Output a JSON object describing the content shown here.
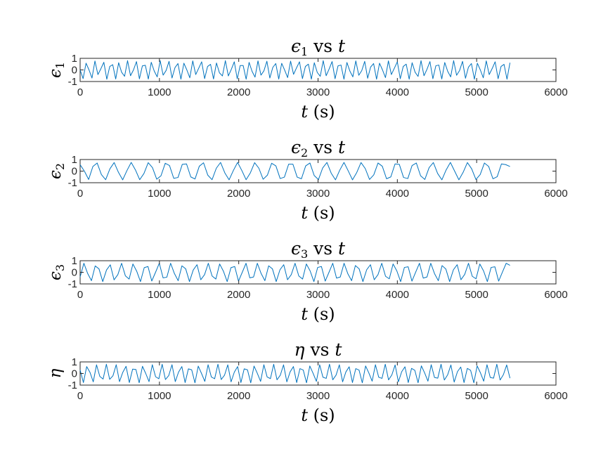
{
  "chart_data": [
    {
      "type": "line",
      "title": "ϵ1 vs t",
      "title_parts": [
        {
          "text": "ϵ",
          "italic": true
        },
        {
          "text": "1",
          "sub": true
        },
        {
          "text": " vs "
        },
        {
          "text": "t",
          "italic": true
        }
      ],
      "xlabel": "t (s)",
      "xlabel_parts": [
        {
          "text": "t",
          "italic": true
        },
        {
          "text": " (s)"
        }
      ],
      "ylabel": "ϵ1",
      "ylabel_parts": [
        {
          "text": "ϵ",
          "italic": true
        },
        {
          "text": "1",
          "sub": true
        }
      ],
      "xlim": [
        0,
        6000
      ],
      "ylim": [
        -1,
        1
      ],
      "xticks": [
        "0",
        "1000",
        "2000",
        "3000",
        "4000",
        "5000",
        "6000"
      ],
      "yticks": [
        "-1",
        "0",
        "1"
      ],
      "grid": false,
      "series": [
        {
          "color": "#0072BD",
          "x_range": [
            0,
            5420
          ],
          "amplitude": 0.8,
          "period": 38.7,
          "values": [
            0.0,
            -0.75,
            0.58,
            0.0,
            -0.7,
            0.77,
            -0.4,
            0.1,
            0.66,
            -0.8,
            0.3,
            0.45,
            -0.78,
            0.62,
            -0.2,
            -0.55,
            0.8,
            -0.5,
            0.0,
            0.72,
            -0.77,
            0.35,
            0.4,
            -0.79,
            0.66,
            -0.1,
            -0.6,
            0.8,
            -0.45,
            -0.05,
            0.74,
            -0.7,
            0.2,
            0.55,
            -0.8,
            0.58,
            0.0,
            -0.68,
            0.78,
            -0.4,
            0.15,
            0.7,
            -0.75,
            0.3,
            0.48,
            -0.78,
            0.6,
            -0.25,
            -0.52,
            0.8,
            -0.52,
            0.05,
            0.7,
            -0.77,
            0.38,
            0.38,
            -0.8,
            0.65,
            -0.12,
            -0.62,
            0.78,
            -0.45,
            -0.08,
            0.75,
            -0.7,
            0.22,
            0.55,
            -0.79,
            0.57,
            -0.02,
            -0.66,
            0.76,
            -0.38,
            0.18,
            0.7,
            -0.75,
            0.3,
            0.5,
            -0.8,
            0.62,
            -0.22,
            -0.55,
            0.8,
            -0.5,
            0.08,
            0.72,
            -0.76,
            0.35,
            0.42,
            -0.8,
            0.64,
            -0.1,
            -0.6,
            0.78,
            -0.46,
            -0.06,
            0.74,
            -0.72,
            0.25,
            0.55,
            -0.8,
            0.58,
            0.0,
            -0.66,
            0.78,
            -0.4,
            0.15,
            0.7,
            -0.76,
            0.3,
            0.5,
            -0.8,
            0.62,
            -0.2,
            -0.56,
            0.8,
            -0.5,
            0.05,
            0.72,
            -0.76,
            0.36,
            0.42,
            -0.78,
            0.64,
            -0.12,
            -0.6,
            0.8,
            -0.46,
            -0.05,
            0.74,
            -0.72,
            0.24,
            0.55,
            -0.8,
            0.58,
            0.0,
            -0.68,
            0.78,
            -0.4,
            0.12,
            0.7,
            -0.76,
            0.3,
            0.48,
            -0.8,
            0.62
          ]
        }
      ]
    },
    {
      "type": "line",
      "title": "ϵ2 vs t",
      "title_parts": [
        {
          "text": "ϵ",
          "italic": true
        },
        {
          "text": "2",
          "sub": true
        },
        {
          "text": " vs "
        },
        {
          "text": "t",
          "italic": true
        }
      ],
      "xlabel": "t (s)",
      "xlabel_parts": [
        {
          "text": "t",
          "italic": true
        },
        {
          "text": " (s)"
        }
      ],
      "ylabel": "ϵ2",
      "ylabel_parts": [
        {
          "text": "ϵ",
          "italic": true
        },
        {
          "text": "2",
          "sub": true
        }
      ],
      "xlim": [
        0,
        6000
      ],
      "ylim": [
        -1,
        1
      ],
      "xticks": [
        "0",
        "1000",
        "2000",
        "3000",
        "4000",
        "5000",
        "6000"
      ],
      "yticks": [
        "-1",
        "0",
        "1"
      ],
      "grid": false,
      "series": [
        {
          "color": "#0072BD",
          "x_range": [
            0,
            5420
          ],
          "amplitude": 0.75,
          "period": 55.4,
          "values": [
            0.55,
            0.0,
            -0.72,
            0.4,
            0.7,
            -0.3,
            -0.74,
            0.2,
            0.74,
            -0.1,
            -0.75,
            0.05,
            0.75,
            0.1,
            -0.74,
            -0.2,
            0.73,
            0.3,
            -0.7,
            -0.4,
            0.68,
            0.48,
            -0.62,
            -0.55,
            0.58,
            0.62,
            -0.5,
            -0.68,
            0.42,
            0.72,
            -0.35,
            -0.74,
            0.25,
            0.75,
            -0.15,
            -0.75,
            0.05,
            0.75,
            0.05,
            -0.74,
            -0.15,
            0.73,
            0.25,
            -0.7,
            -0.35,
            0.68,
            0.45,
            -0.64,
            -0.52,
            0.6,
            0.6,
            -0.52,
            -0.66,
            0.45,
            0.7,
            -0.38,
            -0.73,
            0.28,
            0.75,
            -0.18,
            -0.75,
            0.08,
            0.75,
            0.02,
            -0.75,
            -0.12,
            0.74,
            0.22,
            -0.72,
            -0.32,
            0.7,
            0.42,
            -0.66,
            -0.5,
            0.62,
            0.58,
            -0.55,
            -0.64,
            0.48,
            0.7,
            -0.4,
            -0.72,
            0.3,
            0.74,
            -0.2,
            -0.75,
            0.1,
            0.75,
            0.0,
            -0.75,
            -0.1,
            0.74,
            0.2,
            -0.72,
            -0.3,
            0.7,
            0.4,
            -0.66,
            -0.48,
            0.62,
            0.56,
            0.4
          ]
        }
      ]
    },
    {
      "type": "line",
      "title": "ϵ3 vs t",
      "title_parts": [
        {
          "text": "ϵ",
          "italic": true
        },
        {
          "text": "3",
          "sub": true
        },
        {
          "text": " vs "
        },
        {
          "text": "t",
          "italic": true
        }
      ],
      "xlabel": "t (s)",
      "xlabel_parts": [
        {
          "text": "t",
          "italic": true
        },
        {
          "text": " (s)"
        }
      ],
      "ylabel": "ϵ3",
      "ylabel_parts": [
        {
          "text": "ϵ",
          "italic": true
        },
        {
          "text": "3",
          "sub": true
        }
      ],
      "xlim": [
        0,
        6000
      ],
      "ylim": [
        -1,
        1
      ],
      "xticks": [
        "0",
        "1000",
        "2000",
        "3000",
        "4000",
        "5000",
        "6000"
      ],
      "yticks": [
        "-1",
        "0",
        "1"
      ],
      "grid": false,
      "series": [
        {
          "color": "#0072BD",
          "x_range": [
            0,
            5420
          ],
          "amplitude": 0.8,
          "period": 47.8,
          "values": [
            -0.4,
            0.78,
            -0.1,
            -0.72,
            0.55,
            0.3,
            -0.8,
            0.2,
            0.65,
            -0.65,
            -0.2,
            0.78,
            -0.3,
            -0.58,
            0.72,
            0.1,
            -0.8,
            0.4,
            0.5,
            -0.75,
            0.0,
            0.78,
            -0.48,
            -0.42,
            0.78,
            -0.1,
            -0.72,
            0.56,
            0.3,
            -0.8,
            0.2,
            0.66,
            -0.64,
            -0.2,
            0.78,
            -0.32,
            -0.58,
            0.72,
            0.1,
            -0.8,
            0.4,
            0.5,
            -0.76,
            0.0,
            0.78,
            -0.48,
            -0.4,
            0.78,
            -0.1,
            -0.72,
            0.56,
            0.3,
            -0.8,
            0.22,
            0.66,
            -0.64,
            -0.2,
            0.78,
            -0.32,
            -0.58,
            0.72,
            0.12,
            -0.8,
            0.42,
            0.5,
            -0.76,
            0.0,
            0.78,
            -0.5,
            -0.4,
            0.78,
            -0.12,
            -0.72,
            0.58,
            0.3,
            -0.8,
            0.22,
            0.66,
            -0.64,
            -0.2,
            0.78,
            -0.34,
            -0.56,
            0.72,
            0.12,
            -0.8,
            0.42,
            0.48,
            -0.76,
            0.02,
            0.78,
            -0.5,
            -0.4,
            0.78,
            -0.12,
            -0.72,
            0.58,
            0.28,
            -0.8,
            0.22,
            0.66,
            -0.64,
            -0.18,
            0.78,
            -0.34,
            -0.56,
            0.72,
            0.12,
            -0.8,
            0.42,
            0.48,
            -0.76,
            0.02,
            0.78,
            0.6
          ]
        }
      ]
    },
    {
      "type": "line",
      "title": "η vs t",
      "title_parts": [
        {
          "text": "η",
          "italic": true
        },
        {
          "text": " vs "
        },
        {
          "text": "t",
          "italic": true
        }
      ],
      "xlabel": "t (s)",
      "xlabel_parts": [
        {
          "text": "t",
          "italic": true
        },
        {
          "text": " (s)"
        }
      ],
      "ylabel": "η",
      "ylabel_parts": [
        {
          "text": "η",
          "italic": true
        }
      ],
      "xlim": [
        0,
        6000
      ],
      "ylim": [
        -1,
        1
      ],
      "xticks": [
        "0",
        "1000",
        "2000",
        "3000",
        "4000",
        "5000",
        "6000"
      ],
      "yticks": [
        "-1",
        "0",
        "1"
      ],
      "grid": false,
      "series": [
        {
          "color": "#0072BD",
          "x_range": [
            0,
            5420
          ],
          "amplitude": 0.8,
          "period": 43.1,
          "values": [
            0.3,
            -0.78,
            0.6,
            0.1,
            -0.72,
            0.75,
            -0.25,
            -0.48,
            0.8,
            -0.5,
            -0.2,
            0.76,
            -0.7,
            0.1,
            0.62,
            -0.78,
            0.38,
            0.35,
            -0.8,
            0.62,
            0.0,
            -0.7,
            0.76,
            -0.28,
            -0.45,
            0.8,
            -0.52,
            -0.18,
            0.76,
            -0.7,
            0.12,
            0.6,
            -0.78,
            0.4,
            0.32,
            -0.8,
            0.64,
            0.0,
            -0.68,
            0.76,
            -0.3,
            -0.45,
            0.8,
            -0.52,
            -0.15,
            0.75,
            -0.72,
            0.12,
            0.6,
            -0.78,
            0.4,
            0.32,
            -0.8,
            0.64,
            0.02,
            -0.68,
            0.76,
            -0.3,
            -0.44,
            0.8,
            -0.54,
            -0.15,
            0.75,
            -0.72,
            0.14,
            0.6,
            -0.78,
            0.42,
            0.3,
            -0.8,
            0.65,
            0.02,
            -0.68,
            0.76,
            -0.32,
            -0.42,
            0.8,
            -0.54,
            -0.14,
            0.75,
            -0.72,
            0.14,
            0.58,
            -0.78,
            0.42,
            0.3,
            -0.8,
            0.65,
            0.04,
            -0.66,
            0.76,
            -0.32,
            -0.42,
            0.8,
            -0.55,
            -0.12,
            0.74,
            -0.72,
            0.15,
            0.58,
            -0.78,
            0.44,
            0.28,
            -0.8,
            0.66,
            0.05,
            -0.66,
            0.76,
            -0.34,
            -0.4,
            0.8,
            -0.56,
            -0.12,
            0.74,
            -0.74,
            0.16,
            0.56,
            -0.78,
            0.44,
            0.28,
            -0.8,
            0.66,
            0.06,
            -0.66,
            0.76,
            -0.34,
            -0.4,
            0.8,
            -0.56,
            -0.1,
            0.74,
            -0.4
          ]
        }
      ]
    }
  ]
}
